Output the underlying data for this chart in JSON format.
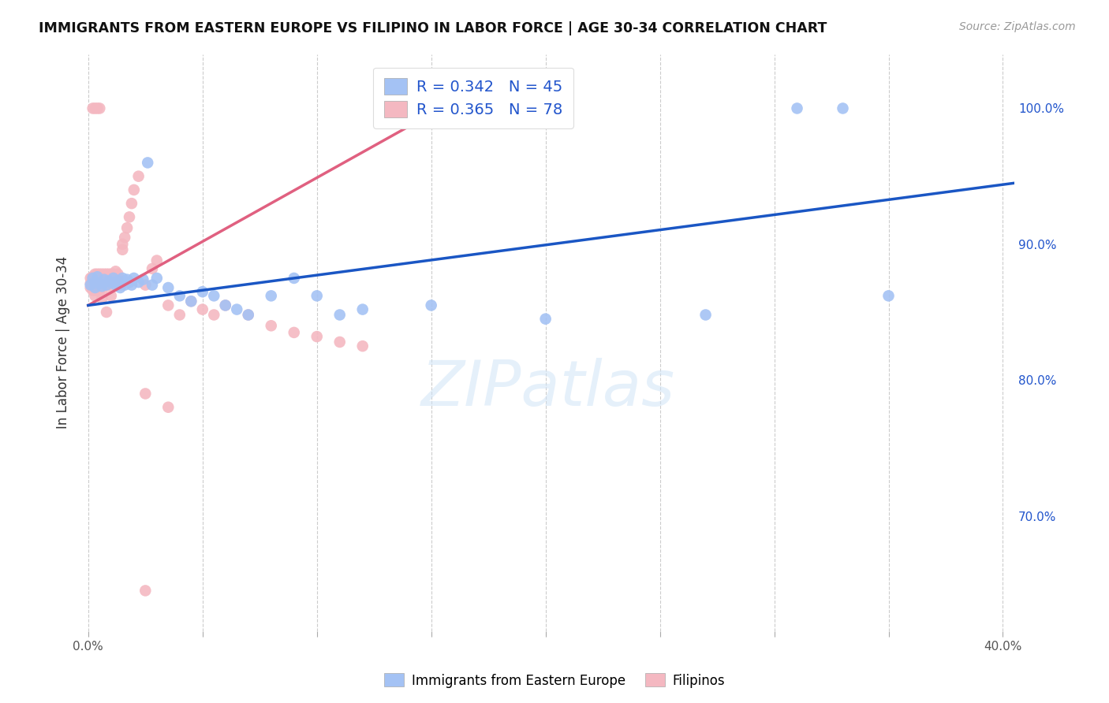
{
  "title": "IMMIGRANTS FROM EASTERN EUROPE VS FILIPINO IN LABOR FORCE | AGE 30-34 CORRELATION CHART",
  "source": "Source: ZipAtlas.com",
  "ylabel": "In Labor Force | Age 30-34",
  "xlim": [
    -0.003,
    0.405
  ],
  "ylim": [
    0.615,
    1.04
  ],
  "x_ticks": [
    0.0,
    0.05,
    0.1,
    0.15,
    0.2,
    0.25,
    0.3,
    0.35,
    0.4
  ],
  "x_tick_labels": [
    "0.0%",
    "",
    "",
    "",
    "",
    "",
    "",
    "",
    "40.0%"
  ],
  "y_ticks_right": [
    0.7,
    0.8,
    0.9,
    1.0
  ],
  "y_tick_labels_right": [
    "70.0%",
    "80.0%",
    "90.0%",
    "100.0%"
  ],
  "blue_color": "#a4c2f4",
  "pink_color": "#f4b8c1",
  "blue_line_color": "#1a56c4",
  "pink_line_color": "#e06080",
  "R_blue": 0.342,
  "N_blue": 45,
  "R_pink": 0.365,
  "N_pink": 78,
  "watermark": "ZIPatlas",
  "background_color": "#ffffff",
  "grid_color": "#cccccc",
  "legend_blue_label": "R = 0.342   N = 45",
  "legend_pink_label": "R = 0.365   N = 78",
  "bottom_legend_blue": "Immigrants from Eastern Europe",
  "bottom_legend_pink": "Filipinos",
  "blue_scatter": {
    "x": [
      0.001,
      0.002,
      0.003,
      0.003,
      0.004,
      0.005,
      0.006,
      0.007,
      0.008,
      0.009,
      0.01,
      0.011,
      0.012,
      0.013,
      0.014,
      0.015,
      0.016,
      0.017,
      0.018,
      0.019,
      0.02,
      0.022,
      0.024,
      0.026,
      0.028,
      0.03,
      0.035,
      0.04,
      0.045,
      0.05,
      0.055,
      0.06,
      0.065,
      0.07,
      0.08,
      0.09,
      0.1,
      0.11,
      0.12,
      0.15,
      0.2,
      0.27,
      0.31,
      0.33,
      0.35
    ],
    "y": [
      0.87,
      0.875,
      0.872,
      0.868,
      0.876,
      0.871,
      0.869,
      0.874,
      0.87,
      0.873,
      0.872,
      0.875,
      0.87,
      0.873,
      0.868,
      0.875,
      0.87,
      0.874,
      0.872,
      0.87,
      0.875,
      0.872,
      0.874,
      0.96,
      0.87,
      0.875,
      0.868,
      0.862,
      0.858,
      0.865,
      0.862,
      0.855,
      0.852,
      0.848,
      0.862,
      0.875,
      0.862,
      0.848,
      0.852,
      0.855,
      0.845,
      0.848,
      1.0,
      1.0,
      0.862
    ]
  },
  "pink_scatter": {
    "x": [
      0.001,
      0.001,
      0.001,
      0.002,
      0.002,
      0.002,
      0.002,
      0.003,
      0.003,
      0.003,
      0.003,
      0.003,
      0.004,
      0.004,
      0.004,
      0.004,
      0.005,
      0.005,
      0.005,
      0.005,
      0.006,
      0.006,
      0.006,
      0.006,
      0.007,
      0.007,
      0.007,
      0.008,
      0.008,
      0.008,
      0.009,
      0.009,
      0.009,
      0.01,
      0.01,
      0.01,
      0.01,
      0.011,
      0.011,
      0.012,
      0.012,
      0.012,
      0.013,
      0.013,
      0.014,
      0.015,
      0.015,
      0.016,
      0.017,
      0.018,
      0.019,
      0.02,
      0.022,
      0.025,
      0.028,
      0.03,
      0.035,
      0.04,
      0.045,
      0.05,
      0.055,
      0.06,
      0.07,
      0.08,
      0.09,
      0.1,
      0.11,
      0.12,
      0.025,
      0.035,
      0.002,
      0.003,
      0.004,
      0.005,
      0.006,
      0.007,
      0.008,
      0.025
    ],
    "y": [
      0.875,
      0.871,
      0.868,
      0.876,
      0.872,
      0.87,
      0.866,
      0.878,
      0.874,
      0.87,
      0.866,
      0.862,
      0.878,
      0.874,
      0.87,
      0.866,
      0.878,
      0.874,
      0.87,
      0.866,
      0.878,
      0.874,
      0.87,
      0.866,
      0.878,
      0.874,
      0.87,
      0.878,
      0.874,
      0.87,
      0.878,
      0.874,
      0.87,
      0.878,
      0.874,
      0.87,
      0.862,
      0.878,
      0.874,
      0.88,
      0.876,
      0.872,
      0.878,
      0.874,
      0.87,
      0.9,
      0.896,
      0.905,
      0.912,
      0.92,
      0.93,
      0.94,
      0.95,
      0.87,
      0.882,
      0.888,
      0.855,
      0.848,
      0.858,
      0.852,
      0.848,
      0.855,
      0.848,
      0.84,
      0.835,
      0.832,
      0.828,
      0.825,
      0.79,
      0.78,
      1.0,
      1.0,
      1.0,
      1.0,
      0.86,
      0.872,
      0.85,
      0.645
    ]
  },
  "pink_line": {
    "x0": 0.0,
    "y0": 0.855,
    "x1": 0.165,
    "y1": 1.01
  },
  "blue_line": {
    "x0": 0.0,
    "y0": 0.855,
    "x1": 0.405,
    "y1": 0.945
  }
}
